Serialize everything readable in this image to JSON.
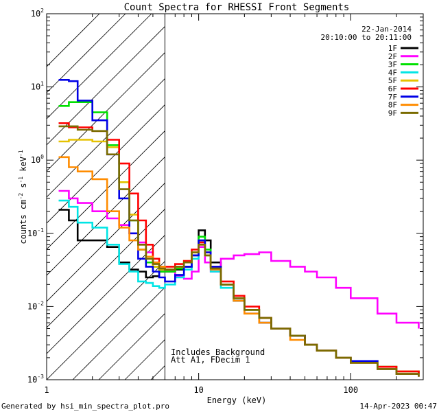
{
  "chart_data": {
    "type": "line",
    "title": "Count Spectra for RHESSI Front Segments",
    "xlabel": "Energy (keV)",
    "ylabel": "counts cm",
    "ylabel_sup1": "-2",
    "ylabel_mid": " s",
    "ylabel_sup2": "-1",
    "ylabel_tail": " keV",
    "ylabel_sup3": "-1",
    "xscale": "log",
    "yscale": "log",
    "xlim": [
      1,
      300
    ],
    "ylim": [
      0.001,
      100
    ],
    "x_ticks": [
      {
        "value": 1,
        "label": "1"
      },
      {
        "value": 10,
        "label": "10"
      },
      {
        "value": 100,
        "label": "100"
      }
    ],
    "y_ticks": [
      {
        "value": 0.001,
        "base": "10",
        "exp": "-3"
      },
      {
        "value": 0.01,
        "base": "10",
        "exp": "-2"
      },
      {
        "value": 0.1,
        "base": "10",
        "exp": "-1"
      },
      {
        "value": 1,
        "base": "10",
        "exp": "0"
      },
      {
        "value": 10,
        "base": "10",
        "exp": "1"
      },
      {
        "value": 100,
        "base": "10",
        "exp": "2"
      }
    ],
    "date": "22-Jan-2014",
    "time_range": "20:10:00 to 20:11:00",
    "hatched_region_energy_max_kev": 6,
    "annotations": [
      "Includes Background",
      "Att A1, FDecim 1"
    ],
    "series": [
      {
        "name": "1F",
        "color": "#000000",
        "points": [
          [
            1.2,
            0.21
          ],
          [
            1.4,
            0.15
          ],
          [
            1.6,
            0.08
          ],
          [
            2,
            0.08
          ],
          [
            2.5,
            0.065
          ],
          [
            3,
            0.04
          ],
          [
            3.5,
            0.032
          ],
          [
            4,
            0.03
          ],
          [
            4.5,
            0.025
          ],
          [
            5,
            0.026
          ],
          [
            5.5,
            0.03
          ],
          [
            6,
            0.03
          ],
          [
            7,
            0.032
          ],
          [
            8,
            0.035
          ],
          [
            9,
            0.05
          ],
          [
            10,
            0.11
          ],
          [
            11,
            0.08
          ],
          [
            12,
            0.04
          ],
          [
            14,
            0.02
          ],
          [
            17,
            0.013
          ],
          [
            20,
            0.009
          ],
          [
            25,
            0.007
          ],
          [
            30,
            0.005
          ],
          [
            40,
            0.004
          ],
          [
            50,
            0.003
          ],
          [
            60,
            0.0025
          ],
          [
            80,
            0.002
          ],
          [
            100,
            0.0018
          ],
          [
            150,
            0.0015
          ],
          [
            200,
            0.0013
          ],
          [
            280,
            0.0012
          ]
        ]
      },
      {
        "name": "2F",
        "color": "#ff00ff",
        "points": [
          [
            1.2,
            0.38
          ],
          [
            1.4,
            0.3
          ],
          [
            1.6,
            0.26
          ],
          [
            2,
            0.2
          ],
          [
            2.5,
            0.16
          ],
          [
            3,
            0.13
          ],
          [
            3.5,
            0.1
          ],
          [
            4,
            0.075
          ],
          [
            4.5,
            0.055
          ],
          [
            5,
            0.04
          ],
          [
            5.5,
            0.032
          ],
          [
            6,
            0.03
          ],
          [
            7,
            0.026
          ],
          [
            8,
            0.024
          ],
          [
            9,
            0.03
          ],
          [
            10,
            0.065
          ],
          [
            11,
            0.04
          ],
          [
            12,
            0.03
          ],
          [
            14,
            0.045
          ],
          [
            17,
            0.05
          ],
          [
            20,
            0.052
          ],
          [
            25,
            0.055
          ],
          [
            30,
            0.042
          ],
          [
            40,
            0.035
          ],
          [
            50,
            0.03
          ],
          [
            60,
            0.025
          ],
          [
            80,
            0.018
          ],
          [
            100,
            0.013
          ],
          [
            150,
            0.008
          ],
          [
            200,
            0.006
          ],
          [
            280,
            0.005
          ]
        ]
      },
      {
        "name": "3F",
        "color": "#00e000",
        "points": [
          [
            1.2,
            5.5
          ],
          [
            1.4,
            6.2
          ],
          [
            1.6,
            6.2
          ],
          [
            2,
            4.5
          ],
          [
            2.5,
            1.6
          ],
          [
            3,
            0.5
          ],
          [
            3.5,
            0.15
          ],
          [
            4,
            0.06
          ],
          [
            4.5,
            0.04
          ],
          [
            5,
            0.035
          ],
          [
            5.5,
            0.03
          ],
          [
            6,
            0.03
          ],
          [
            7,
            0.033
          ],
          [
            8,
            0.04
          ],
          [
            9,
            0.055
          ],
          [
            10,
            0.09
          ],
          [
            11,
            0.06
          ],
          [
            12,
            0.035
          ],
          [
            14,
            0.02
          ],
          [
            17,
            0.012
          ],
          [
            20,
            0.009
          ],
          [
            25,
            0.007
          ],
          [
            30,
            0.005
          ],
          [
            40,
            0.004
          ],
          [
            50,
            0.003
          ],
          [
            60,
            0.0025
          ],
          [
            80,
            0.002
          ],
          [
            100,
            0.0018
          ],
          [
            150,
            0.0015
          ],
          [
            200,
            0.0013
          ],
          [
            280,
            0.0012
          ]
        ]
      },
      {
        "name": "4F",
        "color": "#00e5e5",
        "points": [
          [
            1.2,
            0.28
          ],
          [
            1.4,
            0.23
          ],
          [
            1.6,
            0.14
          ],
          [
            2,
            0.12
          ],
          [
            2.5,
            0.07
          ],
          [
            3,
            0.038
          ],
          [
            3.5,
            0.03
          ],
          [
            4,
            0.022
          ],
          [
            4.5,
            0.021
          ],
          [
            5,
            0.019
          ],
          [
            5.5,
            0.018
          ],
          [
            6,
            0.02
          ],
          [
            7,
            0.025
          ],
          [
            8,
            0.032
          ],
          [
            9,
            0.045
          ],
          [
            10,
            0.08
          ],
          [
            11,
            0.05
          ],
          [
            12,
            0.03
          ],
          [
            14,
            0.018
          ],
          [
            17,
            0.012
          ],
          [
            20,
            0.009
          ],
          [
            25,
            0.006
          ],
          [
            30,
            0.005
          ],
          [
            40,
            0.004
          ],
          [
            50,
            0.003
          ],
          [
            60,
            0.0025
          ],
          [
            80,
            0.002
          ],
          [
            100,
            0.0018
          ],
          [
            150,
            0.0014
          ],
          [
            200,
            0.0012
          ],
          [
            280,
            0.0012
          ]
        ]
      },
      {
        "name": "5F",
        "color": "#e6c200",
        "points": [
          [
            1.2,
            1.8
          ],
          [
            1.4,
            1.9
          ],
          [
            1.6,
            1.9
          ],
          [
            2,
            1.8
          ],
          [
            2.5,
            1.5
          ],
          [
            3,
            0.5
          ],
          [
            3.5,
            0.18
          ],
          [
            4,
            0.07
          ],
          [
            4.5,
            0.045
          ],
          [
            5,
            0.035
          ],
          [
            5.5,
            0.032
          ],
          [
            6,
            0.032
          ],
          [
            7,
            0.035
          ],
          [
            8,
            0.042
          ],
          [
            9,
            0.055
          ],
          [
            10,
            0.075
          ],
          [
            11,
            0.055
          ],
          [
            12,
            0.035
          ],
          [
            14,
            0.02
          ],
          [
            17,
            0.013
          ],
          [
            20,
            0.009
          ],
          [
            25,
            0.007
          ],
          [
            30,
            0.005
          ],
          [
            40,
            0.004
          ],
          [
            50,
            0.003
          ],
          [
            60,
            0.0025
          ],
          [
            80,
            0.002
          ],
          [
            100,
            0.0018
          ],
          [
            150,
            0.0015
          ],
          [
            200,
            0.0013
          ],
          [
            280,
            0.0012
          ]
        ]
      },
      {
        "name": "6F",
        "color": "#ff0000",
        "points": [
          [
            1.2,
            3.2
          ],
          [
            1.4,
            2.8
          ],
          [
            1.6,
            2.8
          ],
          [
            2,
            2.5
          ],
          [
            2.5,
            1.9
          ],
          [
            3,
            0.9
          ],
          [
            3.5,
            0.35
          ],
          [
            4,
            0.15
          ],
          [
            4.5,
            0.07
          ],
          [
            5,
            0.045
          ],
          [
            5.5,
            0.035
          ],
          [
            6,
            0.035
          ],
          [
            7,
            0.038
          ],
          [
            8,
            0.042
          ],
          [
            9,
            0.06
          ],
          [
            10,
            0.075
          ],
          [
            11,
            0.055
          ],
          [
            12,
            0.035
          ],
          [
            14,
            0.022
          ],
          [
            17,
            0.014
          ],
          [
            20,
            0.01
          ],
          [
            25,
            0.007
          ],
          [
            30,
            0.005
          ],
          [
            40,
            0.004
          ],
          [
            50,
            0.003
          ],
          [
            60,
            0.0025
          ],
          [
            80,
            0.002
          ],
          [
            100,
            0.0018
          ],
          [
            150,
            0.0015
          ],
          [
            200,
            0.0013
          ],
          [
            280,
            0.0012
          ]
        ]
      },
      {
        "name": "7F",
        "color": "#0000e6",
        "points": [
          [
            1.2,
            12.5
          ],
          [
            1.4,
            12
          ],
          [
            1.6,
            6.5
          ],
          [
            2,
            3.5
          ],
          [
            2.5,
            1.2
          ],
          [
            3,
            0.3
          ],
          [
            3.5,
            0.1
          ],
          [
            4,
            0.045
          ],
          [
            4.5,
            0.035
          ],
          [
            5,
            0.03
          ],
          [
            5.5,
            0.025
          ],
          [
            6,
            0.022
          ],
          [
            7,
            0.027
          ],
          [
            8,
            0.035
          ],
          [
            9,
            0.05
          ],
          [
            10,
            0.08
          ],
          [
            11,
            0.055
          ],
          [
            12,
            0.035
          ],
          [
            14,
            0.02
          ],
          [
            17,
            0.012
          ],
          [
            20,
            0.008
          ],
          [
            25,
            0.006
          ],
          [
            30,
            0.005
          ],
          [
            40,
            0.004
          ],
          [
            50,
            0.003
          ],
          [
            60,
            0.0025
          ],
          [
            80,
            0.002
          ],
          [
            100,
            0.0018
          ],
          [
            150,
            0.0014
          ],
          [
            200,
            0.0012
          ],
          [
            280,
            0.0011
          ]
        ]
      },
      {
        "name": "8F",
        "color": "#ff8c00",
        "points": [
          [
            1.2,
            1.1
          ],
          [
            1.4,
            0.8
          ],
          [
            1.6,
            0.7
          ],
          [
            2,
            0.55
          ],
          [
            2.5,
            0.2
          ],
          [
            3,
            0.12
          ],
          [
            3.5,
            0.08
          ],
          [
            4,
            0.06
          ],
          [
            4.5,
            0.048
          ],
          [
            5,
            0.04
          ],
          [
            5.5,
            0.035
          ],
          [
            6,
            0.032
          ],
          [
            7,
            0.035
          ],
          [
            8,
            0.04
          ],
          [
            9,
            0.055
          ],
          [
            10,
            0.07
          ],
          [
            11,
            0.05
          ],
          [
            12,
            0.032
          ],
          [
            14,
            0.02
          ],
          [
            17,
            0.012
          ],
          [
            20,
            0.008
          ],
          [
            25,
            0.006
          ],
          [
            30,
            0.005
          ],
          [
            40,
            0.0035
          ],
          [
            50,
            0.003
          ],
          [
            60,
            0.0025
          ],
          [
            80,
            0.002
          ],
          [
            100,
            0.0017
          ],
          [
            150,
            0.0014
          ],
          [
            200,
            0.0012
          ],
          [
            280,
            0.0011
          ]
        ]
      },
      {
        "name": "9F",
        "color": "#7a6b00",
        "points": [
          [
            1.2,
            2.9
          ],
          [
            1.4,
            2.9
          ],
          [
            1.6,
            2.6
          ],
          [
            2,
            2.5
          ],
          [
            2.5,
            1.2
          ],
          [
            3,
            0.4
          ],
          [
            3.5,
            0.15
          ],
          [
            4,
            0.07
          ],
          [
            4.5,
            0.045
          ],
          [
            5,
            0.038
          ],
          [
            5.5,
            0.033
          ],
          [
            6,
            0.032
          ],
          [
            7,
            0.035
          ],
          [
            8,
            0.04
          ],
          [
            9,
            0.055
          ],
          [
            10,
            0.07
          ],
          [
            11,
            0.05
          ],
          [
            12,
            0.033
          ],
          [
            14,
            0.02
          ],
          [
            17,
            0.013
          ],
          [
            20,
            0.009
          ],
          [
            25,
            0.007
          ],
          [
            30,
            0.005
          ],
          [
            40,
            0.004
          ],
          [
            50,
            0.003
          ],
          [
            60,
            0.0025
          ],
          [
            80,
            0.002
          ],
          [
            100,
            0.0017
          ],
          [
            150,
            0.0014
          ],
          [
            200,
            0.0012
          ],
          [
            280,
            0.0011
          ]
        ]
      }
    ]
  },
  "footer": {
    "generated_by": "Generated by hsi_min_spectra_plot.pro",
    "timestamp": "14-Apr-2023 00:47"
  }
}
